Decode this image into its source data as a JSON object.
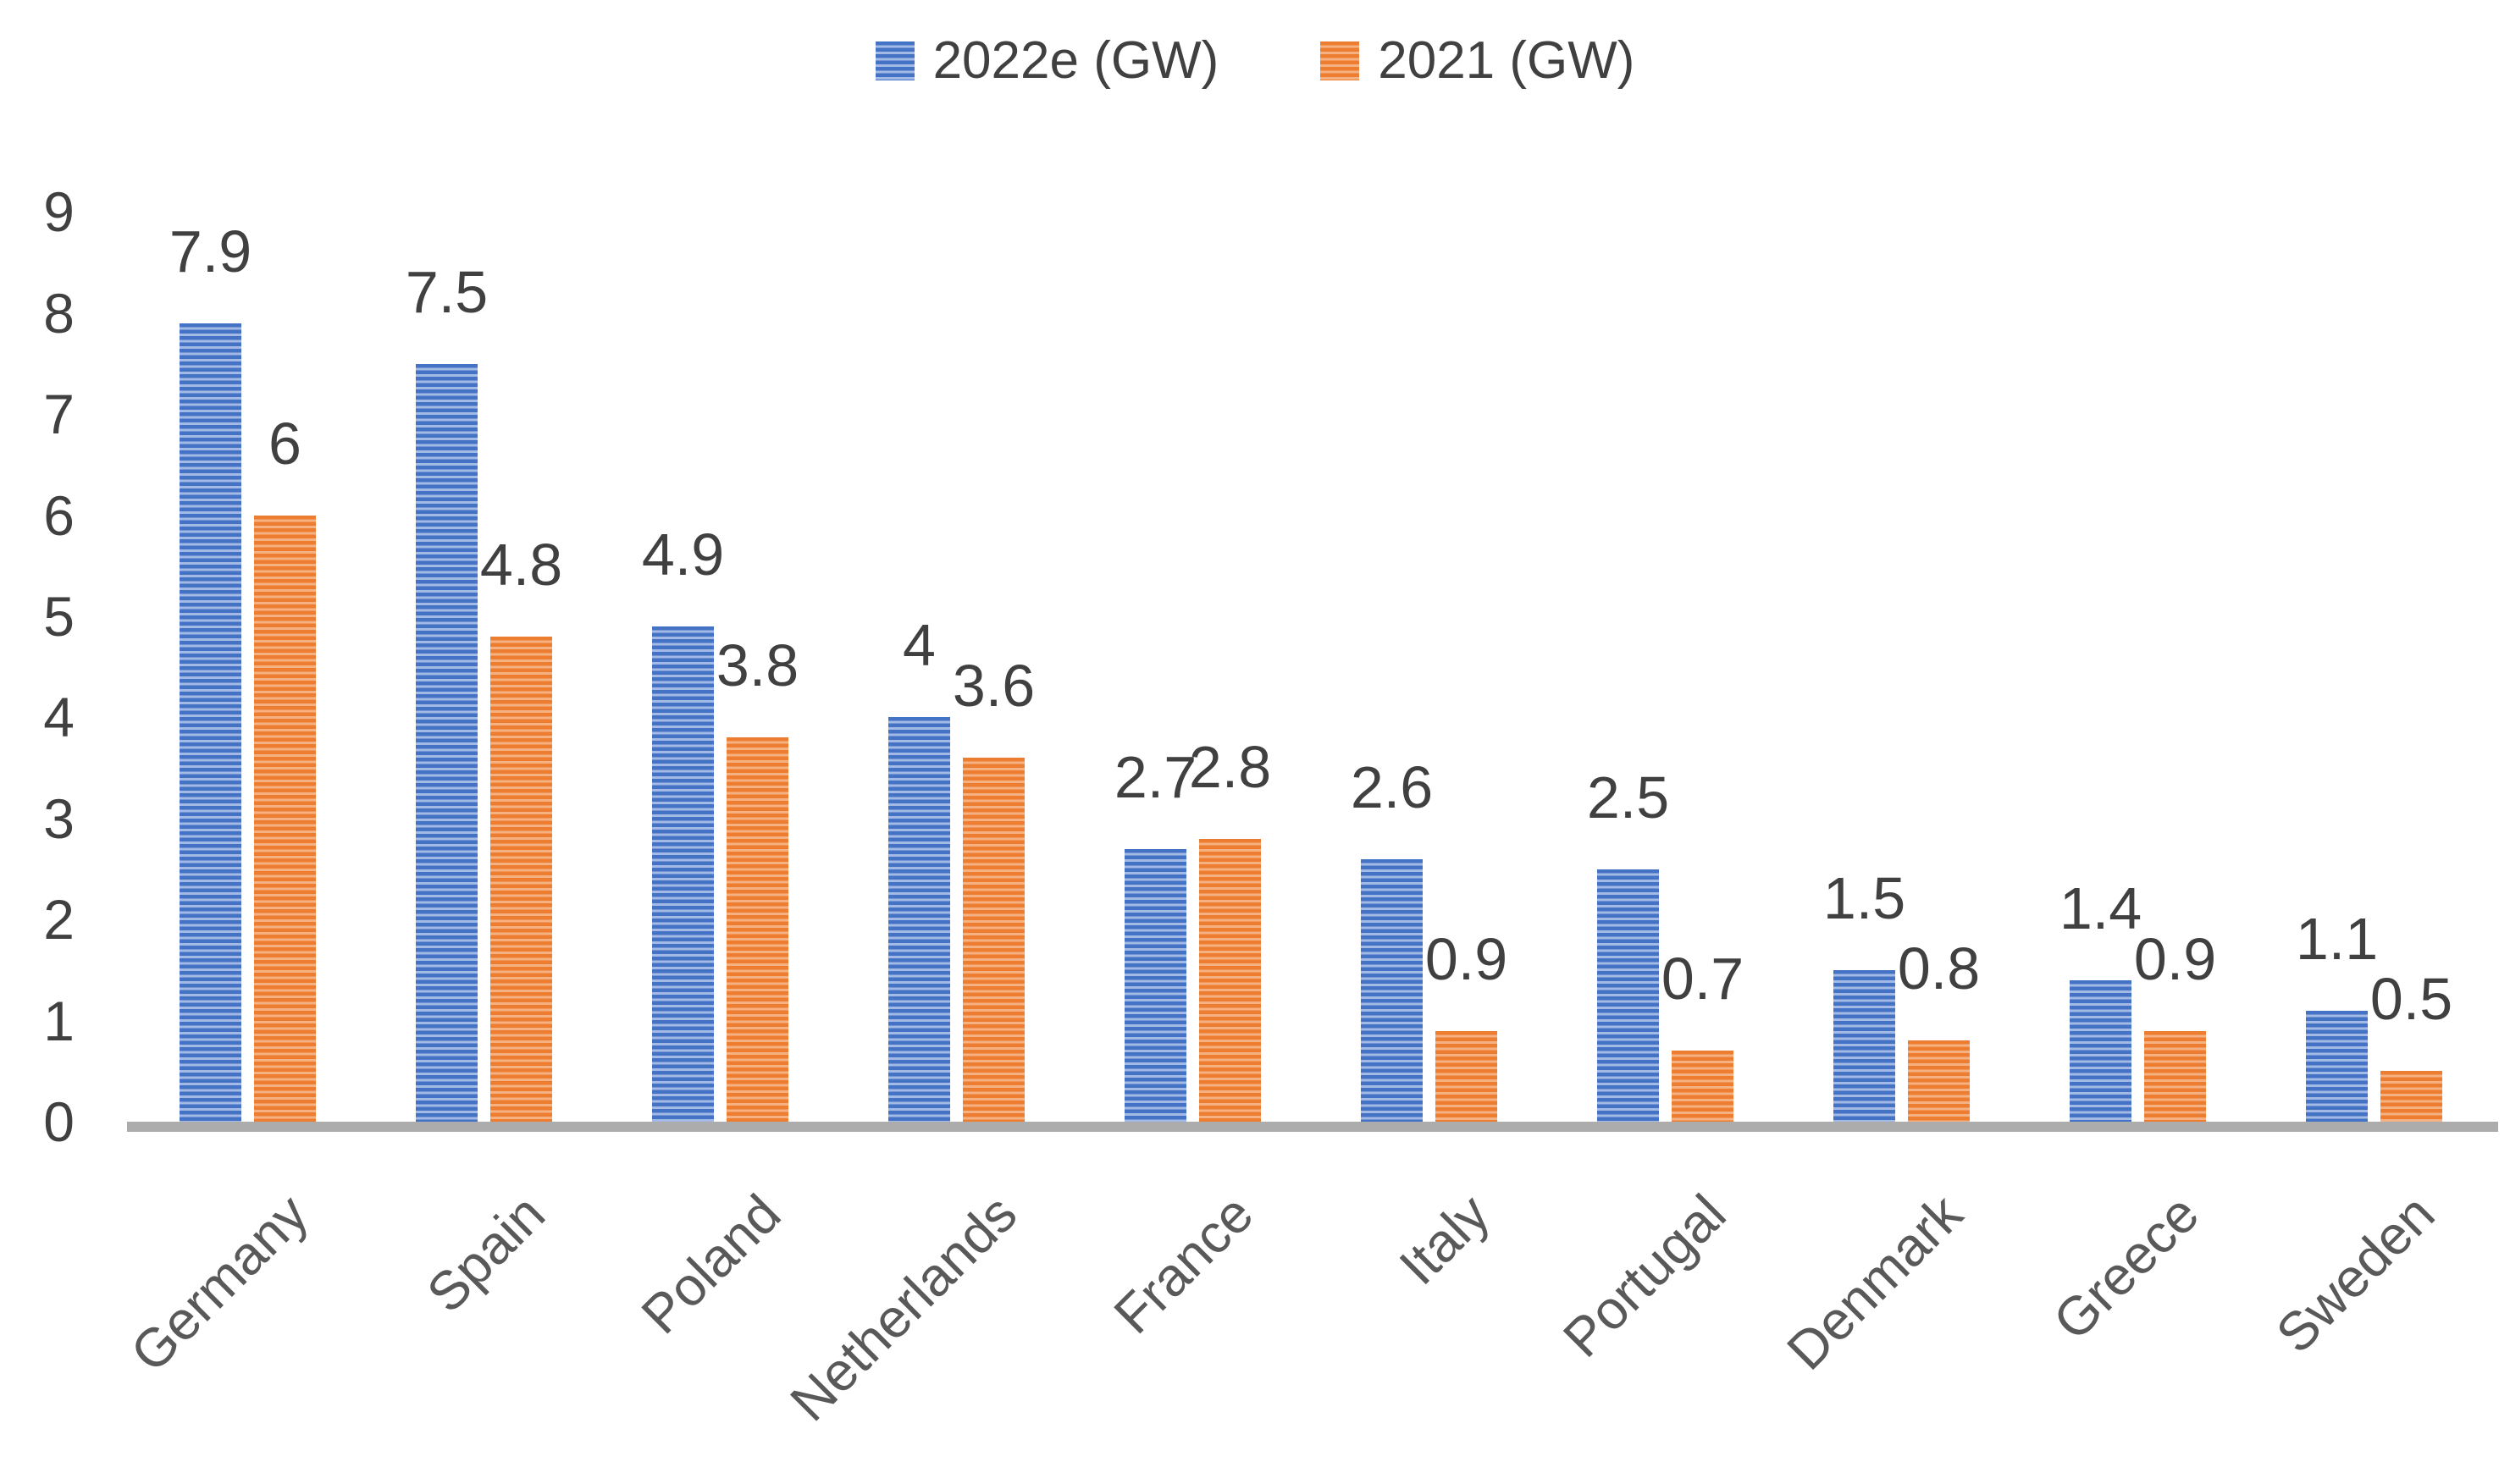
{
  "chart_data": {
    "type": "bar",
    "categories": [
      "Germany",
      "Spain",
      "Poland",
      "Netherlands",
      "France",
      "Italy",
      "Portugal",
      "Denmark",
      "Greece",
      "Sweden"
    ],
    "series": [
      {
        "name": "2022e (GW)",
        "color": "#4472C4",
        "stripe_color": "#A3B9E6",
        "values": [
          7.9,
          7.5,
          4.9,
          4,
          2.7,
          2.6,
          2.5,
          1.5,
          1.4,
          1.1
        ]
      },
      {
        "name": "2021 (GW)",
        "color": "#ED7D31",
        "stripe_color": "#F6B183",
        "values": [
          6,
          4.8,
          3.8,
          3.6,
          2.8,
          0.9,
          0.7,
          0.8,
          0.9,
          0.5
        ]
      }
    ],
    "title": "",
    "xlabel": "",
    "ylabel": "",
    "ylim": [
      0,
      9
    ],
    "yticks": [
      0,
      1,
      2,
      3,
      4,
      5,
      6,
      7,
      8,
      9
    ],
    "grid": false,
    "legend_position": "top",
    "value_labels_shown": true,
    "text_color": "#404040",
    "category_label_color": "#595959",
    "axis_line_color": "#ACACAC"
  }
}
